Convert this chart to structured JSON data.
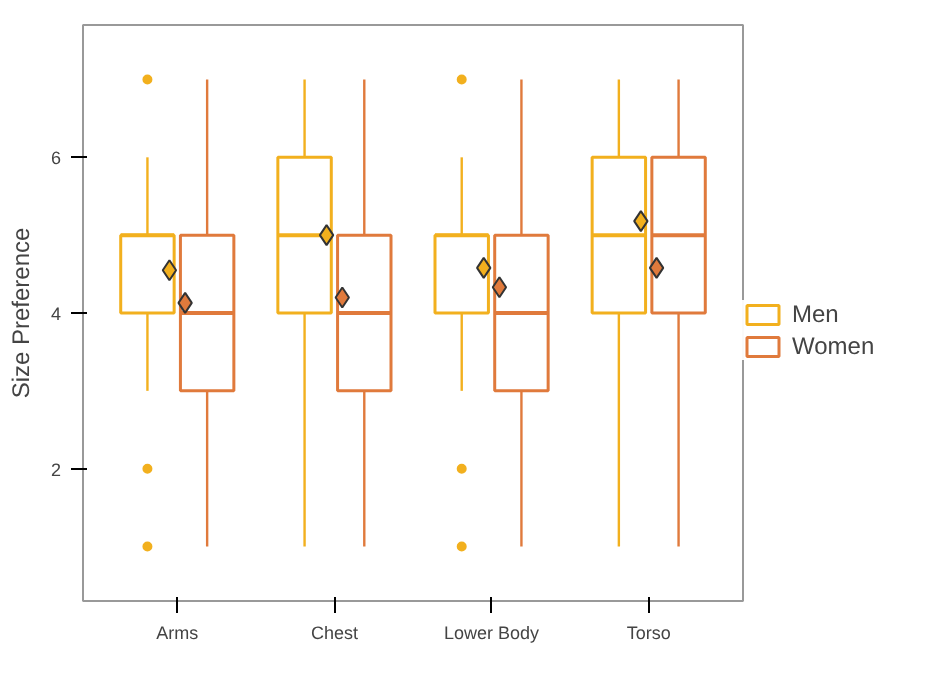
{
  "chart_data": {
    "type": "box",
    "ylabel": "Size Preference",
    "categories": [
      "Arms",
      "Chest",
      "Lower Body",
      "Torso"
    ],
    "ylim": [
      0.3,
      7.7
    ],
    "yticks": [
      2,
      4,
      6
    ],
    "grid": false,
    "legend": "right",
    "marker": "diamond",
    "series": [
      {
        "name": "Men",
        "color": "#f2b01e",
        "boxes": [
          {
            "low": 3,
            "q1": 4,
            "median": 5,
            "q3": 5,
            "high": 6,
            "mean": 4.55,
            "outliers": [
              7,
              2,
              1
            ]
          },
          {
            "low": 1,
            "q1": 4,
            "median": 5,
            "q3": 6,
            "high": 7,
            "mean": 5.0
          },
          {
            "low": 3,
            "q1": 4,
            "median": 5,
            "q3": 5,
            "high": 6,
            "mean": 4.58,
            "outliers": [
              7,
              2,
              1
            ]
          },
          {
            "low": 1,
            "q1": 4,
            "median": 5,
            "q3": 6,
            "high": 7,
            "mean": 5.18
          }
        ]
      },
      {
        "name": "Women",
        "color": "#e07a3c",
        "boxes": [
          {
            "low": 1,
            "q1": 3,
            "median": 4,
            "q3": 5,
            "high": 7,
            "mean": 4.13
          },
          {
            "low": 1,
            "q1": 3,
            "median": 4,
            "q3": 5,
            "high": 7,
            "mean": 4.2
          },
          {
            "low": 1,
            "q1": 3,
            "median": 4,
            "q3": 5,
            "high": 7,
            "mean": 4.33
          },
          {
            "low": 1,
            "q1": 4,
            "median": 5,
            "q3": 6,
            "high": 7,
            "mean": 4.58
          }
        ]
      }
    ]
  }
}
